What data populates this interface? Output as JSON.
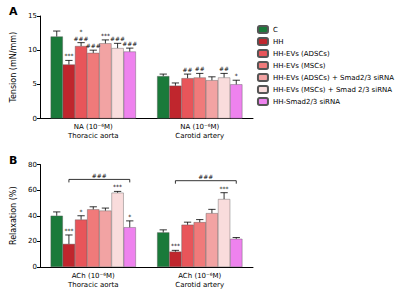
{
  "chart_data": [
    {
      "type": "bar",
      "title": "A",
      "y_label": "Tension (mN/mm)",
      "categories": [
        "NA (10⁻⁶M)\nThoracic aorta",
        "NA (10⁻⁶M)\nCarotid artery"
      ],
      "ylim": [
        0,
        15
      ],
      "yticks": [
        0,
        5,
        10,
        15
      ],
      "grid": false,
      "legend": "top-right",
      "series": [
        {
          "name": "C",
          "color": "#1a7a3a",
          "values": [
            12.0,
            6.2
          ],
          "errors": [
            0.8,
            0.3
          ],
          "annotations": [
            null,
            null
          ]
        },
        {
          "name": "HH",
          "color": "#c0262d",
          "values": [
            7.9,
            4.8
          ],
          "errors": [
            0.6,
            0.4
          ],
          "annotations": [
            "***",
            null
          ]
        },
        {
          "name": "HH-EVs (ADSCs)",
          "color": "#e8555a",
          "values": [
            10.6,
            5.9
          ],
          "errors": [
            0.5,
            0.6
          ],
          "annotations": [
            "*\n###",
            "##"
          ]
        },
        {
          "name": "HH-EVs (MSCs)",
          "color": "#f07a7a",
          "values": [
            9.6,
            6.0
          ],
          "errors": [
            0.4,
            0.6
          ],
          "annotations": [
            "###",
            "##"
          ]
        },
        {
          "name": "HH-EVs (ADSCs) + Smad2/3 siRNA",
          "color": "#f2a3a3",
          "values": [
            11.0,
            5.6
          ],
          "errors": [
            0.5,
            0.5
          ],
          "annotations": [
            "***",
            null
          ]
        },
        {
          "name": "HH-EVs (MSCs) + Smad 2/3 siRNA",
          "color": "#f9dcdc",
          "values": [
            10.3,
            6.0
          ],
          "errors": [
            0.7,
            0.6
          ],
          "annotations": [
            "###",
            "##"
          ]
        },
        {
          "name": "HH-Smad2/3 siRNA",
          "color": "#ee82ee",
          "values": [
            9.8,
            5.0
          ],
          "errors": [
            0.5,
            0.6
          ],
          "annotations": [
            "###",
            "*"
          ]
        }
      ]
    },
    {
      "type": "bar",
      "title": "B",
      "y_label": "Relaxation (%)",
      "categories": [
        "ACh (10⁻⁶M)\nThoracic aorta",
        "ACh (10⁻⁶M)\nCarotid artery"
      ],
      "ylim": [
        0,
        80
      ],
      "yticks": [
        0,
        20,
        40,
        60,
        80
      ],
      "grid": false,
      "series": [
        {
          "name": "C",
          "color": "#1a7a3a",
          "values": [
            40,
            27
          ],
          "errors": [
            3,
            2
          ],
          "annotations": [
            null,
            null
          ]
        },
        {
          "name": "HH",
          "color": "#c0262d",
          "values": [
            18,
            12
          ],
          "errors": [
            7,
            1
          ],
          "annotations": [
            "***",
            "***"
          ]
        },
        {
          "name": "HH-EVs (ADSCs)",
          "color": "#e8555a",
          "values": [
            37,
            33
          ],
          "errors": [
            3,
            2
          ],
          "annotations": [
            "*",
            null
          ]
        },
        {
          "name": "HH-EVs (MSCs)",
          "color": "#f07a7a",
          "values": [
            45,
            35
          ],
          "errors": [
            2,
            2
          ],
          "annotations": [
            null,
            null
          ]
        },
        {
          "name": "HH-EVs (ADSCs) + Smad2/3 siRNA",
          "color": "#f2a3a3",
          "values": [
            44,
            42
          ],
          "errors": [
            2,
            3
          ],
          "annotations": [
            null,
            null
          ]
        },
        {
          "name": "HH-EVs (MSCs) + Smad 2/3 siRNA",
          "color": "#f9dcdc",
          "values": [
            58,
            53
          ],
          "errors": [
            1,
            5
          ],
          "annotations": [
            "***",
            "***"
          ]
        },
        {
          "name": "HH-Smad2/3 siRNA",
          "color": "#ee82ee",
          "values": [
            31,
            22
          ],
          "errors": [
            5,
            1
          ],
          "annotations": [
            "*",
            null
          ]
        }
      ],
      "brackets": [
        {
          "category": "ACh (10⁻⁶M)\nThoracic aorta",
          "from": "HH",
          "to": "HH-Smad2/3 siRNA",
          "label": "###"
        },
        {
          "category": "ACh (10⁻⁶M)\nCarotid artery",
          "from": "HH",
          "to": "HH-Smad2/3 siRNA",
          "label": "###"
        }
      ]
    }
  ]
}
